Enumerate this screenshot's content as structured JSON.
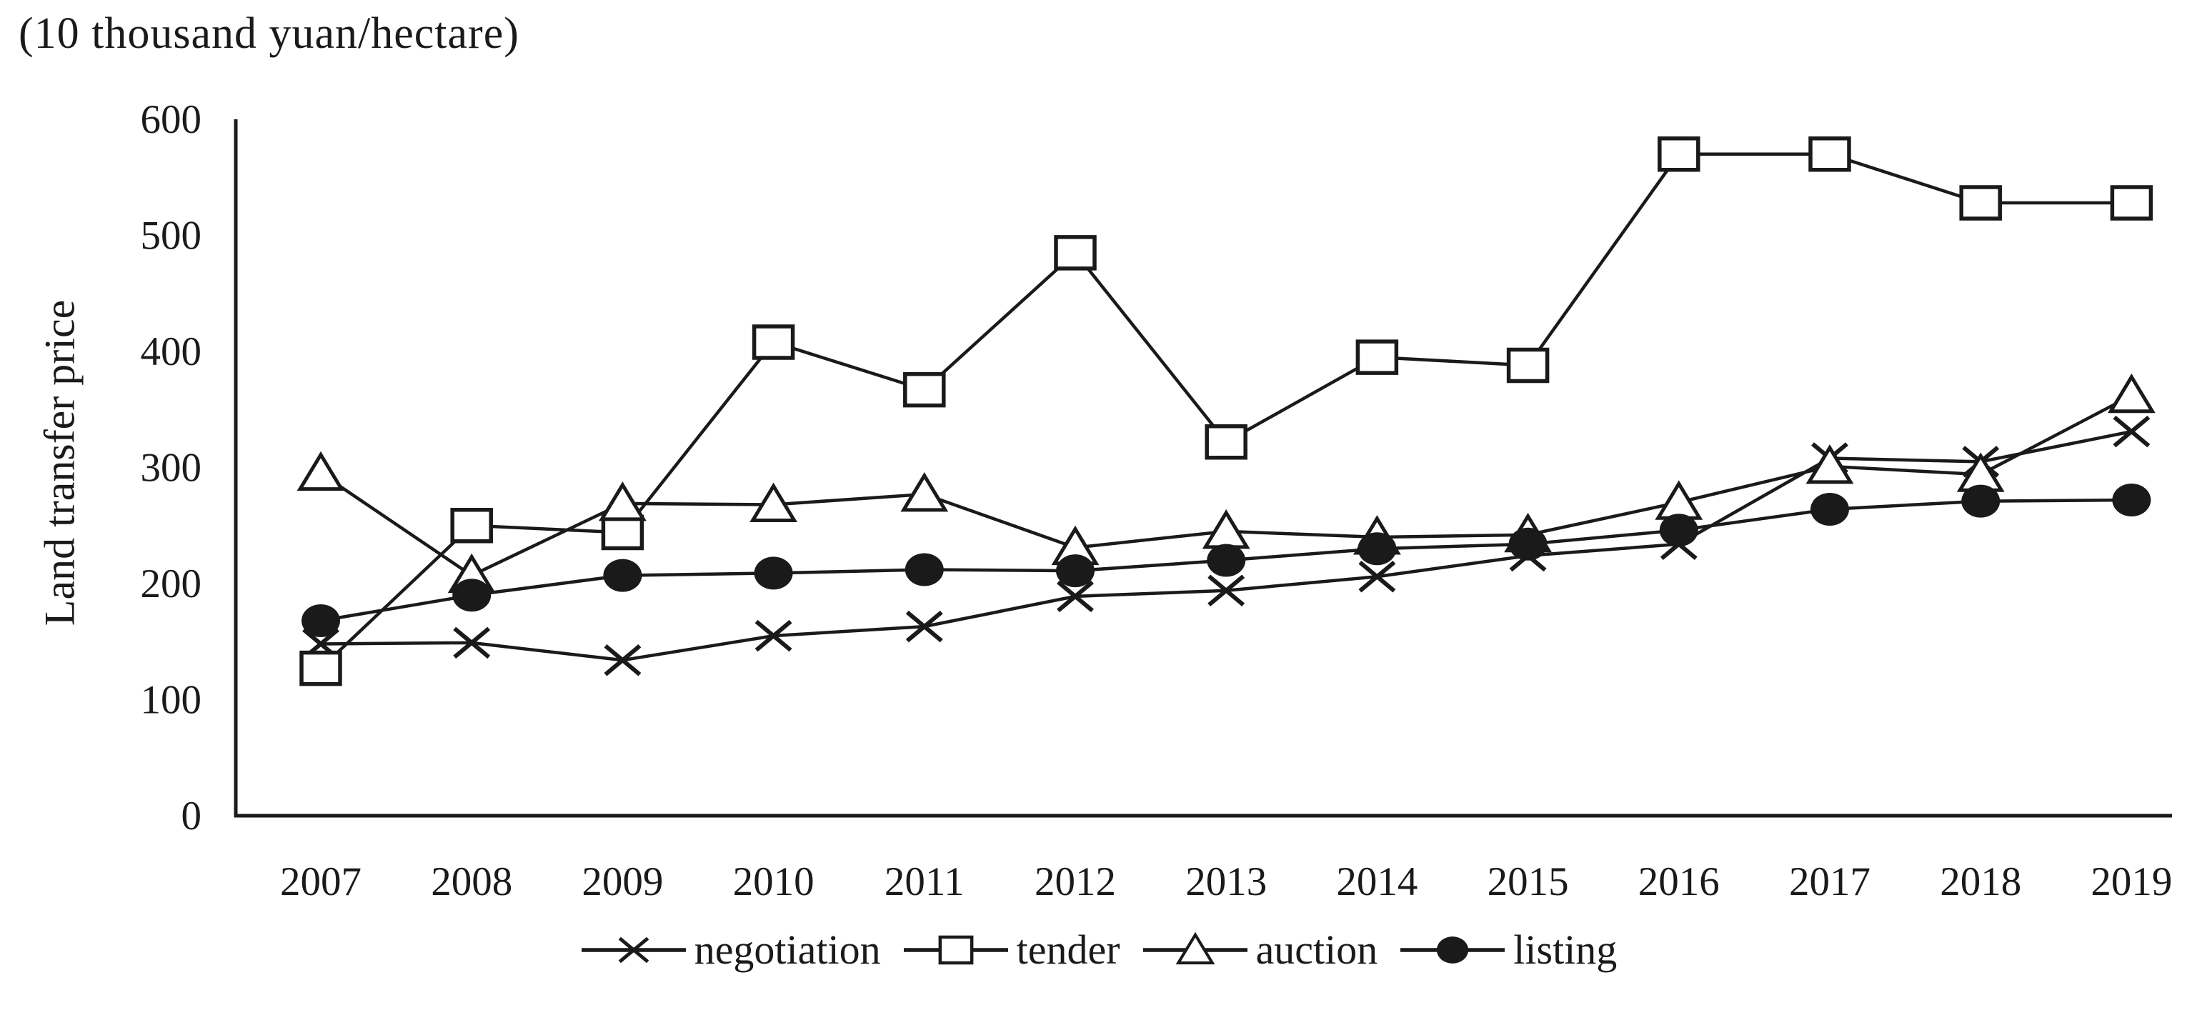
{
  "page": {
    "background": "#ffffff",
    "ink_color": "#1a1a1a"
  },
  "header": {
    "unit_title": "(10 thousand yuan/hectare)"
  },
  "chart_data": {
    "type": "line",
    "title": "(10 thousand yuan/hectare)",
    "xlabel": "",
    "ylabel": "Land transfer price",
    "categories": [
      "2007",
      "2008",
      "2009",
      "2010",
      "2011",
      "2012",
      "2013",
      "2014",
      "2015",
      "2016",
      "2017",
      "2018",
      "2019"
    ],
    "ylim": [
      0,
      600
    ],
    "y_ticks": [
      0,
      100,
      200,
      300,
      400,
      500,
      600
    ],
    "grid": false,
    "legend_position": "bottom",
    "series": [
      {
        "name": "negotiation",
        "marker": "x",
        "values": [
          148,
          149,
          134,
          155,
          163,
          189,
          194,
          206,
          224,
          234,
          308,
          305,
          331
        ]
      },
      {
        "name": "tender",
        "marker": "square",
        "values": [
          127,
          250,
          244,
          408,
          367,
          485,
          322,
          395,
          388,
          570,
          570,
          528,
          528
        ]
      },
      {
        "name": "auction",
        "marker": "triangle",
        "values": [
          295,
          207,
          269,
          268,
          277,
          231,
          245,
          240,
          242,
          270,
          301,
          294,
          362
        ]
      },
      {
        "name": "listing",
        "marker": "circle",
        "values": [
          168,
          190,
          207,
          209,
          212,
          211,
          220,
          230,
          234,
          246,
          264,
          271,
          272
        ]
      }
    ]
  },
  "legend": {
    "items": [
      {
        "label": "negotiation",
        "marker": "x"
      },
      {
        "label": "tender",
        "marker": "square"
      },
      {
        "label": "auction",
        "marker": "triangle"
      },
      {
        "label": "listing",
        "marker": "circle"
      }
    ]
  }
}
